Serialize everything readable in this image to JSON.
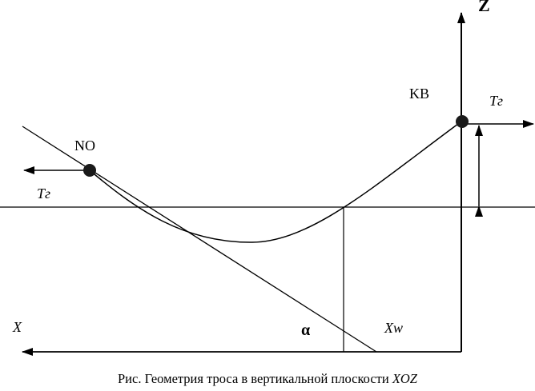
{
  "diagram": {
    "labels": {
      "z_axis": "Z",
      "x_axis": "X",
      "kb": "KB",
      "no": "NO",
      "tension_right": "Tг",
      "tension_left": "Tг",
      "alpha": "α",
      "xw": "Xw"
    },
    "caption": {
      "prefix": "Рис. Геометрия троса в вертикальной плоскости ",
      "plane": "XOZ"
    }
  }
}
